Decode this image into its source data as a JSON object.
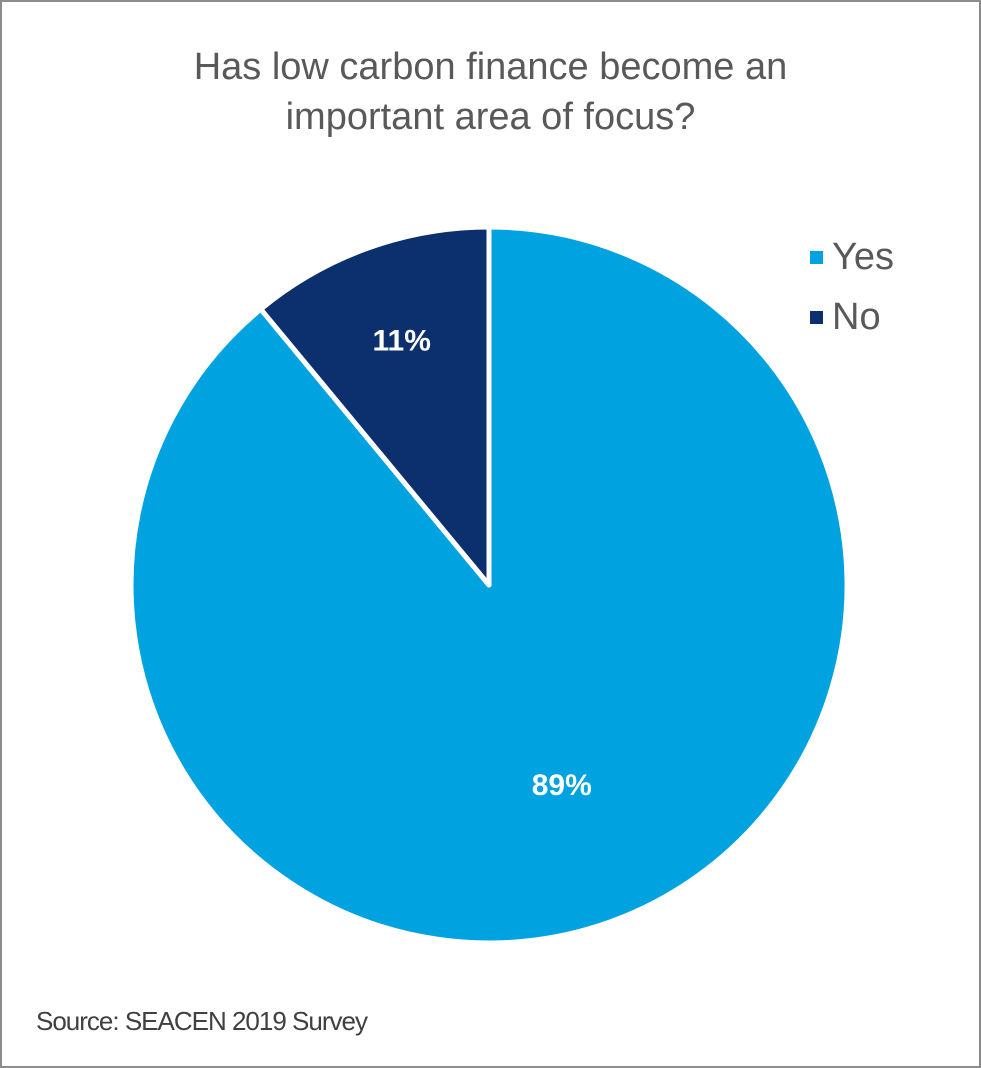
{
  "chart_data": {
    "type": "pie",
    "title": "Has low carbon finance become an\nimportant area of focus?",
    "categories": [
      "Yes",
      "No"
    ],
    "values": [
      89,
      11
    ],
    "data_labels": [
      "89%",
      "11%"
    ],
    "colors": [
      "#00a3e0",
      "#0c2f6e"
    ],
    "legend_position": "top-right",
    "start_angle_deg": 0,
    "direction": "clockwise"
  },
  "source": "Source: SEACEN 2019 Survey"
}
